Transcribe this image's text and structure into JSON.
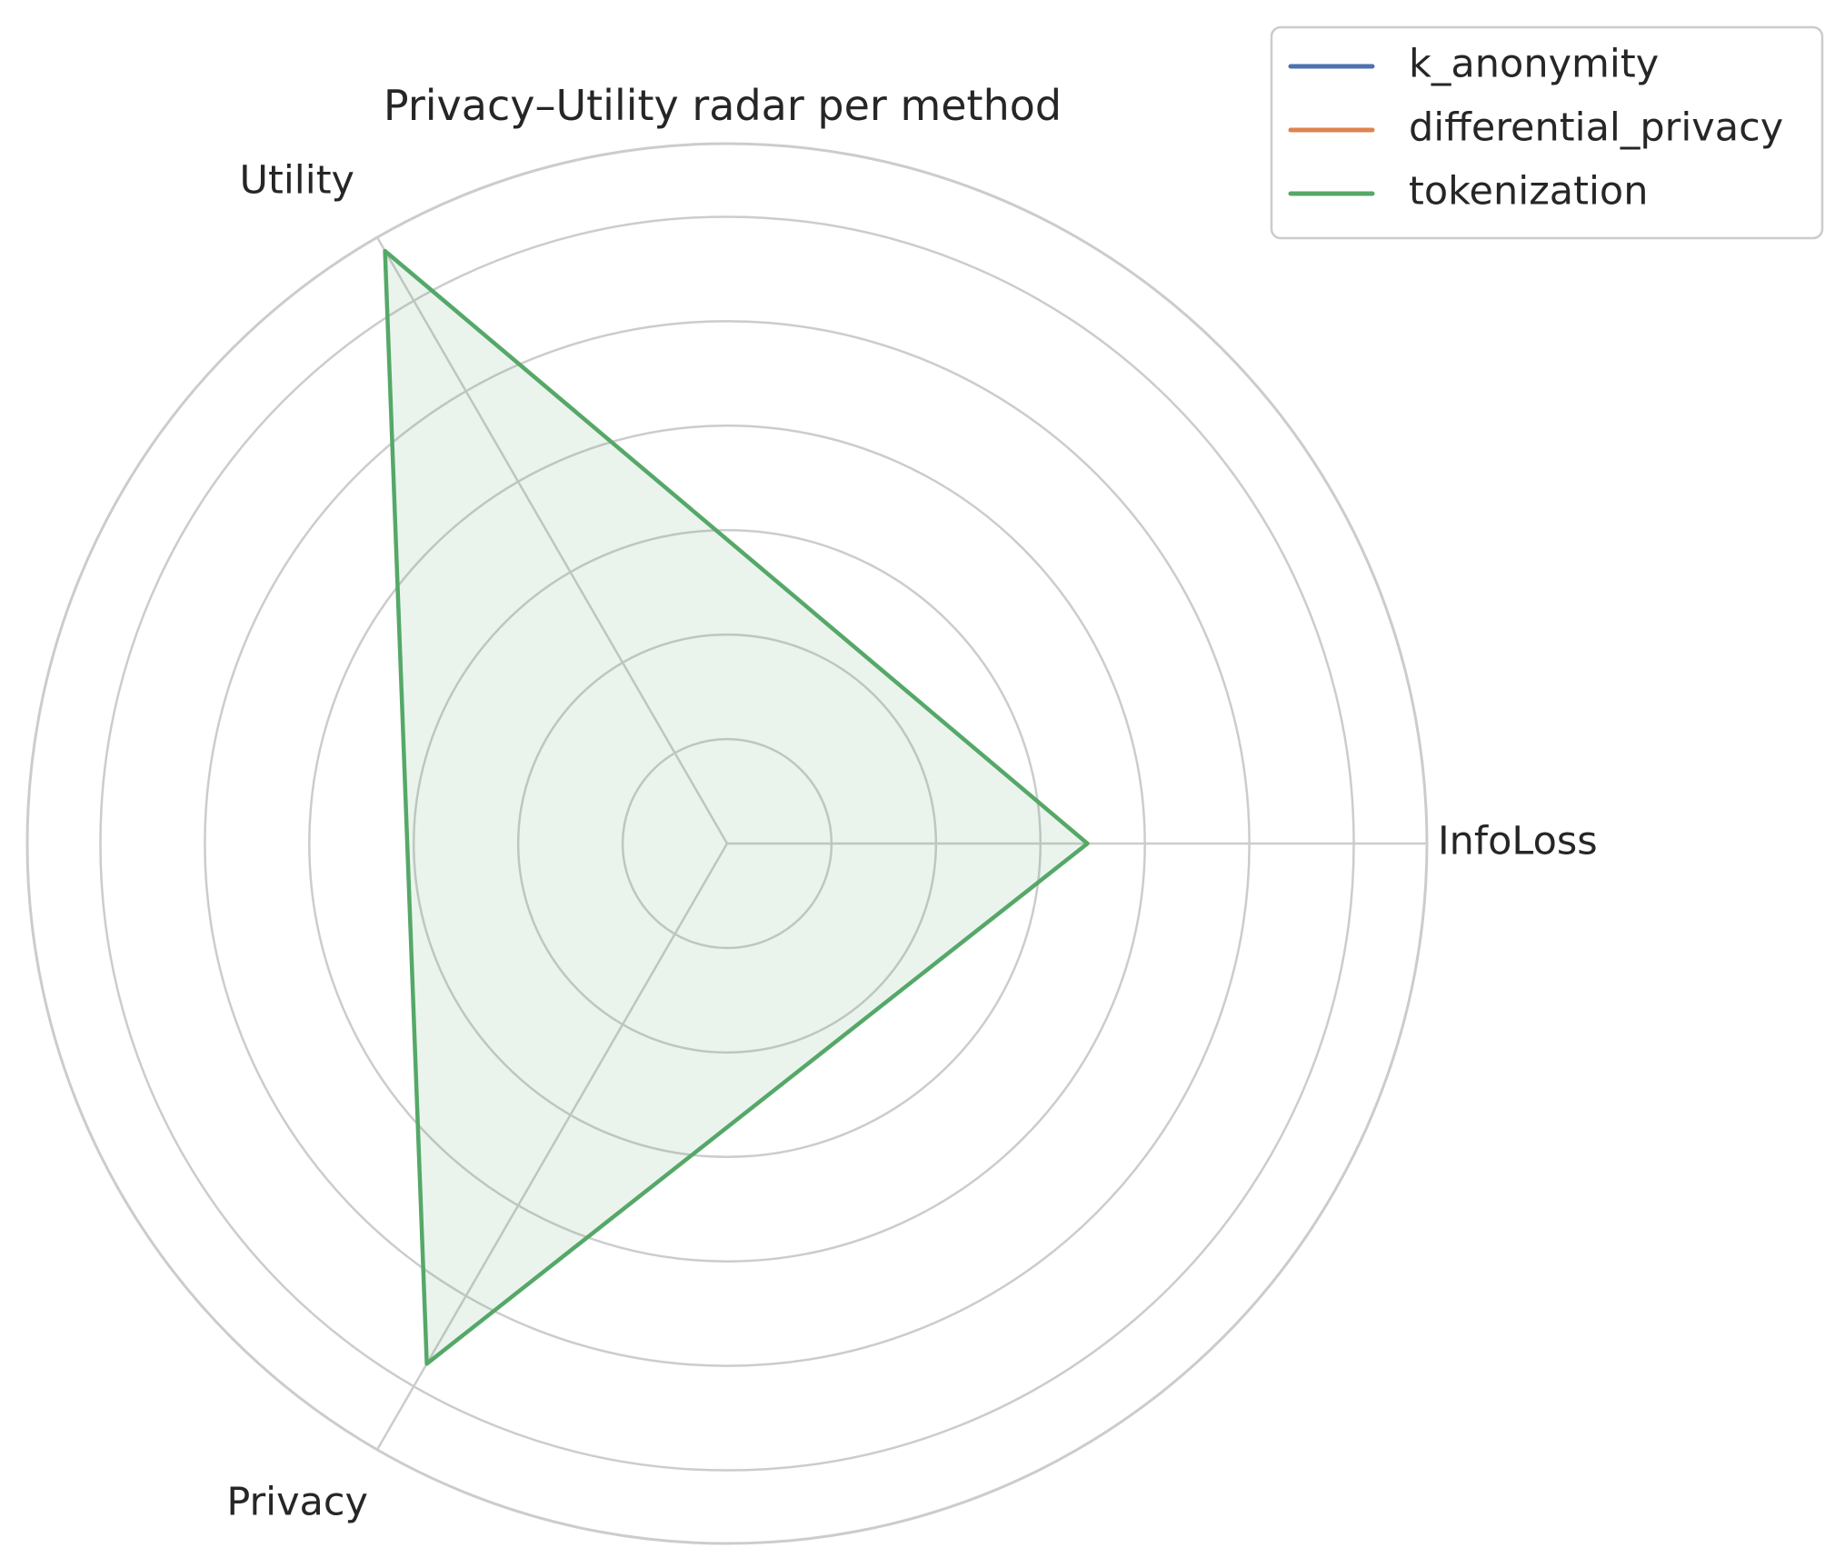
{
  "chart_data": {
    "type": "radar",
    "title": "Privacy–Utility radar per method",
    "axes": [
      "InfoLoss",
      "Utility",
      "Privacy"
    ],
    "rlim": [
      0,
      6.7
    ],
    "ring_values": [
      1,
      2,
      3,
      4,
      5,
      6,
      6.7
    ],
    "grid": true,
    "legend_position": "top-right",
    "series": [
      {
        "name": "k_anonymity",
        "color": "#4c72b0",
        "values": null
      },
      {
        "name": "differential_privacy",
        "color": "#dd8452",
        "values": null
      },
      {
        "name": "tokenization",
        "color": "#55a868",
        "values": [
          3.45,
          6.55,
          5.75
        ]
      }
    ]
  }
}
